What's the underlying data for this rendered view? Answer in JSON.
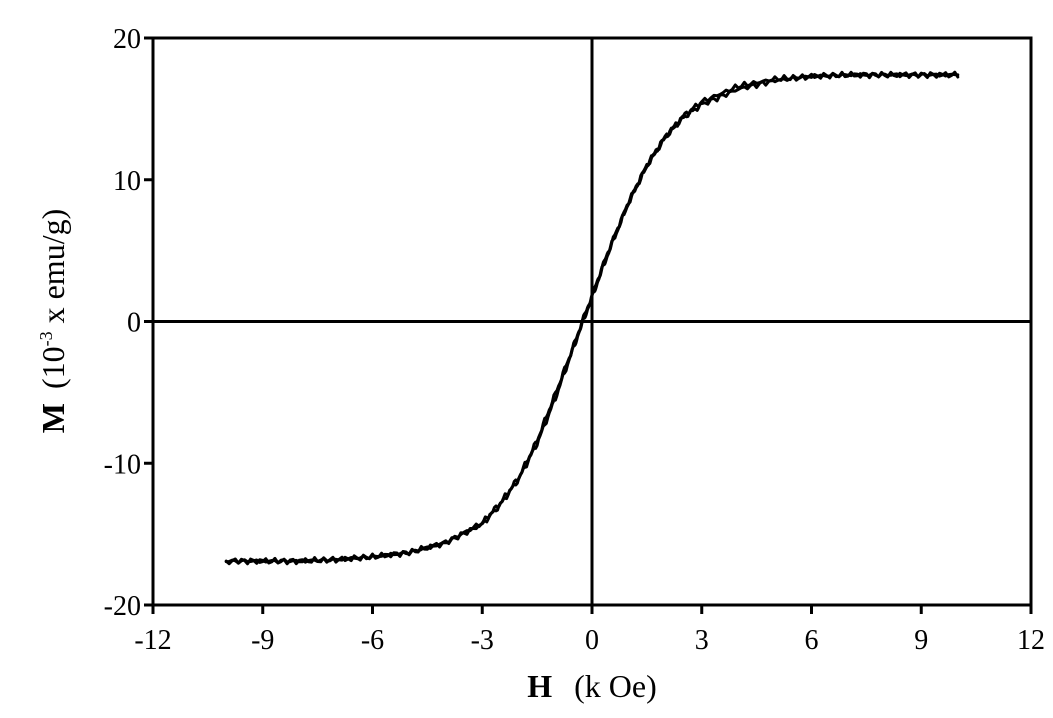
{
  "chart_data": {
    "type": "line",
    "title": "",
    "xlabel": {
      "symbol": "H",
      "unit": "(k Oe)"
    },
    "ylabel": {
      "symbol": "M",
      "unit_pre": "(10",
      "unit_exp": "-3",
      "unit_post": " x emu/g)"
    },
    "xlim": [
      -12,
      12
    ],
    "ylim": [
      -20,
      20
    ],
    "xticks": [
      -12,
      -9,
      -6,
      -3,
      0,
      3,
      6,
      9,
      12
    ],
    "yticks": [
      -20,
      -10,
      0,
      10,
      20
    ],
    "xtick_labels": [
      "-12",
      "-9",
      "-6",
      "-3",
      "0",
      "3",
      "6",
      "9",
      "12"
    ],
    "ytick_labels": [
      "-20",
      "-10",
      "0",
      "10",
      "20"
    ],
    "grid": false,
    "legend": "none",
    "line_color": "#000000",
    "series": [
      {
        "x": [
          10,
          9,
          8,
          7,
          6,
          5,
          4,
          3,
          2.5,
          2,
          1.5,
          1,
          0.5,
          0.25,
          0,
          -0.25,
          -0.5,
          -1,
          -1.5,
          -2,
          -2.5,
          -3,
          -4,
          -5,
          -6,
          -7,
          -8,
          -9,
          -10
        ],
        "y": [
          17.4,
          17.4,
          17.4,
          17.4,
          17.3,
          17.1,
          16.6,
          15.5,
          14.5,
          13.0,
          11.0,
          8.4,
          5.3,
          3.6,
          1.8,
          0.1,
          -1.7,
          -5.1,
          -8.4,
          -11.0,
          -12.8,
          -14.2,
          -15.6,
          -16.3,
          -16.6,
          -16.8,
          -16.9,
          -16.9,
          -16.9
        ]
      },
      {
        "x": [
          -10,
          -9,
          -8,
          -7,
          -6,
          -5,
          -4,
          -3,
          -2.5,
          -2,
          -1.5,
          -1,
          -0.5,
          -0.25,
          0,
          0.25,
          0.5,
          1,
          1.5,
          2,
          2.5,
          3,
          4,
          5,
          6,
          7,
          8,
          9,
          10
        ],
        "y": [
          -16.9,
          -16.9,
          -16.9,
          -16.8,
          -16.6,
          -16.3,
          -15.6,
          -14.3,
          -12.9,
          -11.1,
          -8.6,
          -5.4,
          -1.8,
          0.0,
          1.7,
          3.5,
          5.2,
          8.4,
          11.0,
          13.0,
          14.4,
          15.3,
          16.4,
          17.0,
          17.3,
          17.4,
          17.4,
          17.4,
          17.4
        ]
      }
    ]
  }
}
